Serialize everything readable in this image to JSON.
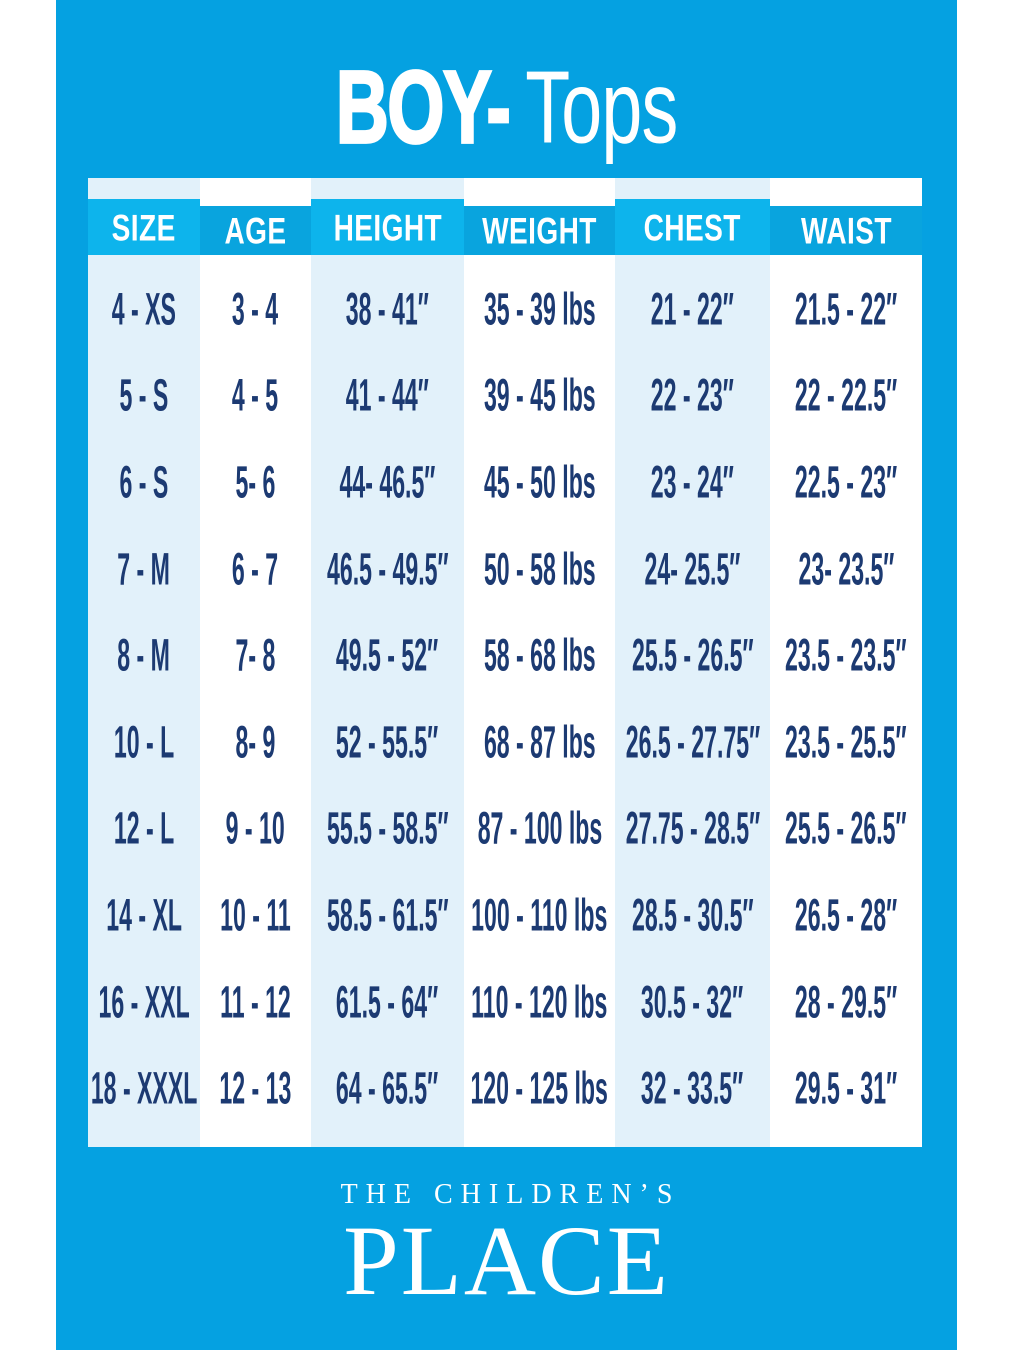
{
  "title": {
    "bold": "BOY-",
    "regular": "Tops"
  },
  "table": {
    "headers": [
      "SIZE",
      "AGE",
      "HEIGHT",
      "WEIGHT",
      "CHEST",
      "WAIST"
    ],
    "rows": [
      [
        "4 - XS",
        "3 - 4",
        "38 - 41″",
        "35 - 39 lbs",
        "21 - 22″",
        "21.5 - 22″"
      ],
      [
        "5 - S",
        "4 - 5",
        "41 - 44″",
        "39 - 45 lbs",
        "22 - 23″",
        "22 - 22.5″"
      ],
      [
        "6 - S",
        "5- 6",
        "44- 46.5″",
        "45 - 50 lbs",
        "23 - 24″",
        "22.5 - 23″"
      ],
      [
        "7 - M",
        "6 - 7",
        "46.5 - 49.5″",
        "50 - 58 lbs",
        "24- 25.5″",
        "23- 23.5″"
      ],
      [
        "8 - M",
        "7- 8",
        "49.5 - 52″",
        "58 - 68 lbs",
        "25.5 - 26.5″",
        "23.5 - 23.5″"
      ],
      [
        "10 - L",
        "8- 9",
        "52 - 55.5″",
        "68 - 87 lbs",
        "26.5 - 27.75″",
        "23.5 - 25.5″"
      ],
      [
        "12 - L",
        "9 - 10",
        "55.5 - 58.5″",
        "87 - 100 lbs",
        "27.75 - 28.5″",
        "25.5 - 26.5″"
      ],
      [
        "14 - XL",
        "10 - 11",
        "58.5 - 61.5″",
        "100 - 110 lbs",
        "28.5 - 30.5″",
        "26.5 - 28″"
      ],
      [
        "16 - XXL",
        "11 - 12",
        "61.5 - 64″",
        "110 - 120 lbs",
        "30.5 - 32″",
        "28 - 29.5″"
      ],
      [
        "18 - XXXL",
        "12 - 13",
        "64 - 65.5″",
        "120 - 125 lbs",
        "32 - 33.5″",
        "29.5 - 31″"
      ]
    ]
  },
  "footer": {
    "brand_line1": "THE CHILDREN’S",
    "brand_line2": "PLACE"
  },
  "colors": {
    "background_blue": "#05a1e1",
    "header_light_cyan": "#0db4ec",
    "header_dark_blue": "#09a4de",
    "column_tint": "#e2f1fa",
    "table_white": "#ffffff",
    "body_text_navy": "#1c3a72",
    "title_white": "#ffffff"
  },
  "chart_data": {
    "type": "table",
    "title": "BOY- Tops",
    "columns": [
      "SIZE",
      "AGE",
      "HEIGHT",
      "WEIGHT",
      "CHEST",
      "WAIST"
    ],
    "rows": [
      [
        "4 - XS",
        "3 - 4",
        "38 - 41″",
        "35 - 39 lbs",
        "21 - 22″",
        "21.5 - 22″"
      ],
      [
        "5 - S",
        "4 - 5",
        "41 - 44″",
        "39 - 45 lbs",
        "22 - 23″",
        "22 - 22.5″"
      ],
      [
        "6 - S",
        "5- 6",
        "44- 46.5″",
        "45 - 50 lbs",
        "23 - 24″",
        "22.5 - 23″"
      ],
      [
        "7 - M",
        "6 - 7",
        "46.5 - 49.5″",
        "50 - 58 lbs",
        "24- 25.5″",
        "23- 23.5″"
      ],
      [
        "8 - M",
        "7- 8",
        "49.5 - 52″",
        "58 - 68 lbs",
        "25.5 - 26.5″",
        "23.5 - 23.5″"
      ],
      [
        "10 - L",
        "8- 9",
        "52 - 55.5″",
        "68 - 87 lbs",
        "26.5 - 27.75″",
        "23.5 - 25.5″"
      ],
      [
        "12 - L",
        "9 - 10",
        "55.5 - 58.5″",
        "87 - 100 lbs",
        "27.75 - 28.5″",
        "25.5 - 26.5″"
      ],
      [
        "14 - XL",
        "10 - 11",
        "58.5 - 61.5″",
        "100 - 110 lbs",
        "28.5 - 30.5″",
        "26.5 - 28″"
      ],
      [
        "16 - XXL",
        "11 - 12",
        "61.5 - 64″",
        "110 - 120 lbs",
        "30.5 - 32″",
        "28 - 29.5″"
      ],
      [
        "18 - XXXL",
        "12 - 13",
        "64 - 65.5″",
        "120 - 125 lbs",
        "32 - 33.5″",
        "29.5 - 31″"
      ]
    ],
    "notes": "Children's size chart infographic; alternating tinted columns; brand logo at bottom"
  }
}
